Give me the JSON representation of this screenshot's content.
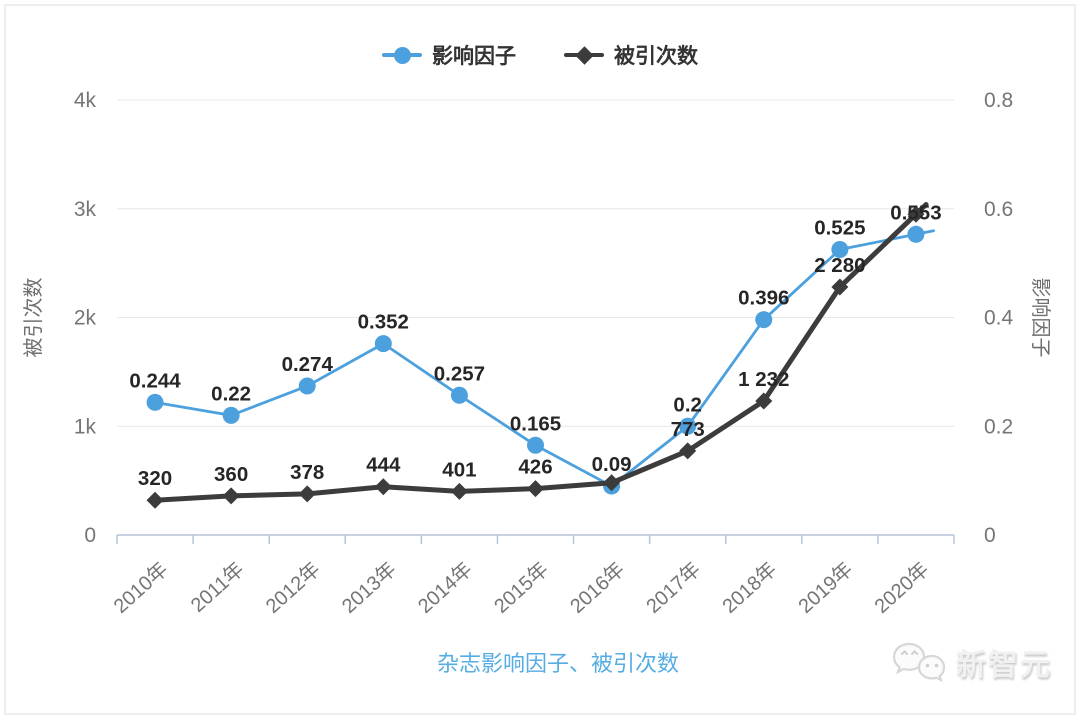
{
  "chart_data": {
    "type": "line",
    "x_categories": [
      "2010年",
      "2011年",
      "2012年",
      "2013年",
      "2014年",
      "2015年",
      "2016年",
      "2017年",
      "2018年",
      "2019年",
      "2020年"
    ],
    "series": [
      {
        "id": "impact-factor",
        "name": "影响因子",
        "axis": "right",
        "color": "#4ca0dd",
        "marker": "circle",
        "width": 2.8,
        "extend": 18,
        "values": [
          0.244,
          0.22,
          0.274,
          0.352,
          0.257,
          0.165,
          0.09,
          0.2,
          0.396,
          0.525,
          0.553
        ],
        "labels": [
          "0.244",
          "0.22",
          "0.274",
          "0.352",
          "0.257",
          "0.165",
          "0.09",
          "0.2",
          "0.396",
          "0.525",
          "0.553"
        ]
      },
      {
        "id": "citations",
        "name": "被引次数",
        "axis": "left",
        "color": "#3c3c3c",
        "marker": "diamond",
        "width": 5,
        "extend": 14,
        "values": [
          320,
          360,
          378,
          444,
          401,
          426,
          480,
          773,
          1232,
          2280,
          2950
        ],
        "labels": [
          "320",
          "360",
          "378",
          "444",
          "401",
          "426",
          "",
          "773",
          "1 232",
          "2 280",
          ""
        ]
      }
    ],
    "left_axis": {
      "title": "被引次数",
      "min": 0,
      "max": 4000,
      "ticks": [
        "0",
        "1k",
        "2k",
        "3k",
        "4k"
      ]
    },
    "right_axis": {
      "title": "影响因子",
      "min": 0,
      "max": 0.8,
      "ticks": [
        "0",
        "0.2",
        "0.4",
        "0.6",
        "0.8"
      ]
    },
    "bottom_title": "杂志影响因子、被引次数",
    "legend_position": "top-center",
    "grid": true,
    "colors": {
      "grid_line": "#e7e7e7",
      "axis_line": "#b5c4da",
      "tick_label": "#757575",
      "axis_title": "#6f6f6f",
      "data_label": "#262626",
      "bottom_title": "#56ade4"
    }
  },
  "watermark": {
    "icon": "chat-bubbles-icon",
    "text": "新智元"
  }
}
